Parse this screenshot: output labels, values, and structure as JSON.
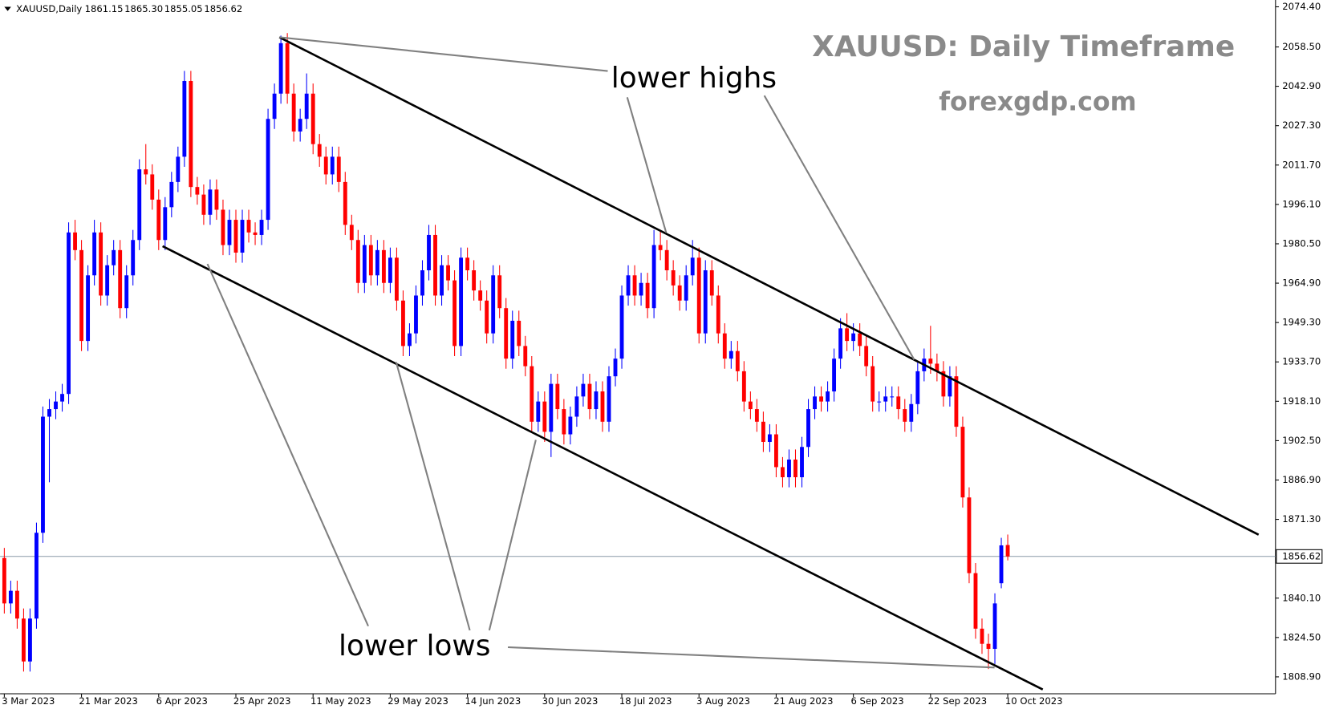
{
  "chart_data": {
    "type": "candlestick",
    "title": "XAUUSD: Daily Timeframe",
    "subtitle": "forexgdp.com",
    "symbol": "XAUUSD,Daily",
    "header_labels": [
      "1861.15",
      "1865.30",
      "1855.05",
      "1856.62"
    ],
    "annotations": [
      "lower highs",
      "lower lows"
    ],
    "up_color": "#0000ff",
    "down_color": "#ff0000",
    "grid": false,
    "last_price": 1856.62,
    "ylim": [
      1802.2,
      2077.1
    ],
    "yticks": [
      {
        "value": 1808.9,
        "label": "1808.90"
      },
      {
        "value": 1824.5,
        "label": "1824.50"
      },
      {
        "value": 1840.1,
        "label": "1840.10"
      },
      {
        "value": 1871.3,
        "label": "1871.30"
      },
      {
        "value": 1886.9,
        "label": "1886.90"
      },
      {
        "value": 1902.5,
        "label": "1902.50"
      },
      {
        "value": 1918.1,
        "label": "1918.10"
      },
      {
        "value": 1933.7,
        "label": "1933.70"
      },
      {
        "value": 1949.3,
        "label": "1949.30"
      },
      {
        "value": 1964.9,
        "label": "1964.90"
      },
      {
        "value": 1980.5,
        "label": "1980.50"
      },
      {
        "value": 1996.1,
        "label": "1996.10"
      },
      {
        "value": 2011.7,
        "label": "2011.70"
      },
      {
        "value": 2027.3,
        "label": "2027.30"
      },
      {
        "value": 2042.9,
        "label": "2042.90"
      },
      {
        "value": 2058.5,
        "label": "2058.50"
      },
      {
        "value": 2074.4,
        "label": "2074.40"
      }
    ],
    "categories": [
      "3 Mar 2023",
      null,
      null,
      null,
      null,
      null,
      null,
      null,
      null,
      null,
      null,
      null,
      "21 Mar 2023",
      null,
      null,
      null,
      null,
      null,
      null,
      null,
      null,
      null,
      null,
      null,
      "6 Apr 2023",
      null,
      null,
      null,
      null,
      null,
      null,
      null,
      null,
      null,
      null,
      null,
      "25 Apr 2023",
      null,
      null,
      null,
      null,
      null,
      null,
      null,
      null,
      null,
      null,
      null,
      "11 May 2023",
      null,
      null,
      null,
      null,
      null,
      null,
      null,
      null,
      null,
      null,
      null,
      "29 May 2023",
      null,
      null,
      null,
      null,
      null,
      null,
      null,
      null,
      null,
      null,
      null,
      "14 Jun 2023",
      null,
      null,
      null,
      null,
      null,
      null,
      null,
      null,
      null,
      null,
      null,
      "30 Jun 2023",
      null,
      null,
      null,
      null,
      null,
      null,
      null,
      null,
      null,
      null,
      null,
      "18 Jul 2023",
      null,
      null,
      null,
      null,
      null,
      null,
      null,
      null,
      null,
      null,
      null,
      "3 Aug 2023",
      null,
      null,
      null,
      null,
      null,
      null,
      null,
      null,
      null,
      null,
      null,
      "21 Aug 2023",
      null,
      null,
      null,
      null,
      null,
      null,
      null,
      null,
      null,
      null,
      null,
      "6 Sep 2023",
      null,
      null,
      null,
      null,
      null,
      null,
      null,
      null,
      null,
      null,
      null,
      "22 Sep 2023",
      null,
      null,
      null,
      null,
      null,
      null,
      null,
      null,
      null,
      null,
      null,
      "10 Oct 2023"
    ],
    "ohlc": [
      [
        1856,
        1860,
        1834,
        1838
      ],
      [
        1838,
        1847,
        1834,
        1843
      ],
      [
        1843,
        1847,
        1828,
        1832
      ],
      [
        1832,
        1836,
        1811,
        1815
      ],
      [
        1815,
        1836,
        1811,
        1832
      ],
      [
        1832,
        1870,
        1828,
        1866
      ],
      [
        1866,
        1916,
        1862,
        1912
      ],
      [
        1912,
        1919,
        1886,
        1915
      ],
      [
        1915,
        1922,
        1911,
        1918
      ],
      [
        1918,
        1925,
        1914,
        1921
      ],
      [
        1921,
        1989,
        1917,
        1985
      ],
      [
        1985,
        1990,
        1974,
        1978
      ],
      [
        1978,
        1982,
        1938,
        1942
      ],
      [
        1942,
        1972,
        1938,
        1968
      ],
      [
        1968,
        1990,
        1964,
        1985
      ],
      [
        1985,
        1989,
        1956,
        1960
      ],
      [
        1960,
        1976,
        1956,
        1972
      ],
      [
        1972,
        1982,
        1968,
        1978
      ],
      [
        1978,
        1982,
        1951,
        1955
      ],
      [
        1955,
        1972,
        1951,
        1968
      ],
      [
        1968,
        1986,
        1964,
        1982
      ],
      [
        1982,
        2014,
        1978,
        2010
      ],
      [
        2010,
        2020,
        2004,
        2008
      ],
      [
        2008,
        2012,
        1994,
        1998
      ],
      [
        1998,
        2002,
        1978,
        1982
      ],
      [
        1982,
        1999,
        1978,
        1995
      ],
      [
        1995,
        2009,
        1991,
        2005
      ],
      [
        2005,
        2019,
        2001,
        2015
      ],
      [
        2015,
        2049,
        2011,
        2045
      ],
      [
        2045,
        2049,
        1999,
        2003
      ],
      [
        2003,
        2007,
        1996,
        2000
      ],
      [
        2000,
        2004,
        1988,
        1992
      ],
      [
        1992,
        2006,
        1988,
        2002
      ],
      [
        2002,
        2006,
        1990,
        1994
      ],
      [
        1994,
        1998,
        1976,
        1980
      ],
      [
        1980,
        1994,
        1976,
        1990
      ],
      [
        1990,
        1994,
        1973,
        1977
      ],
      [
        1977,
        1994,
        1973,
        1990
      ],
      [
        1990,
        1994,
        1981,
        1985
      ],
      [
        1985,
        1989,
        1980,
        1984
      ],
      [
        1984,
        1994,
        1980,
        1990
      ],
      [
        1990,
        2034,
        1986,
        2030
      ],
      [
        2030,
        2044,
        2026,
        2040
      ],
      [
        2040,
        2063,
        2036,
        2060
      ],
      [
        2060,
        2064,
        2036,
        2040
      ],
      [
        2040,
        2044,
        2021,
        2025
      ],
      [
        2025,
        2034,
        2021,
        2030
      ],
      [
        2030,
        2048,
        2026,
        2040
      ],
      [
        2040,
        2044,
        2016,
        2020
      ],
      [
        2020,
        2024,
        2011,
        2015
      ],
      [
        2015,
        2019,
        2004,
        2008
      ],
      [
        2008,
        2019,
        2004,
        2015
      ],
      [
        2015,
        2019,
        2001,
        2005
      ],
      [
        2005,
        2009,
        1984,
        1988
      ],
      [
        1988,
        1992,
        1978,
        1982
      ],
      [
        1982,
        1986,
        1961,
        1965
      ],
      [
        1965,
        1984,
        1961,
        1980
      ],
      [
        1980,
        1984,
        1964,
        1968
      ],
      [
        1968,
        1982,
        1964,
        1978
      ],
      [
        1978,
        1982,
        1961,
        1965
      ],
      [
        1965,
        1979,
        1961,
        1975
      ],
      [
        1975,
        1979,
        1954,
        1958
      ],
      [
        1958,
        1962,
        1936,
        1940
      ],
      [
        1940,
        1949,
        1936,
        1945
      ],
      [
        1945,
        1964,
        1941,
        1960
      ],
      [
        1960,
        1974,
        1956,
        1970
      ],
      [
        1970,
        1988,
        1966,
        1984
      ],
      [
        1984,
        1988,
        1956,
        1960
      ],
      [
        1960,
        1976,
        1956,
        1972
      ],
      [
        1972,
        1976,
        1962,
        1966
      ],
      [
        1966,
        1970,
        1936,
        1940
      ],
      [
        1940,
        1979,
        1936,
        1975
      ],
      [
        1975,
        1979,
        1966,
        1970
      ],
      [
        1970,
        1974,
        1958,
        1962
      ],
      [
        1962,
        1966,
        1954,
        1958
      ],
      [
        1958,
        1962,
        1941,
        1945
      ],
      [
        1945,
        1972,
        1941,
        1968
      ],
      [
        1968,
        1972,
        1951,
        1955
      ],
      [
        1955,
        1959,
        1931,
        1935
      ],
      [
        1935,
        1954,
        1931,
        1950
      ],
      [
        1950,
        1954,
        1936,
        1940
      ],
      [
        1940,
        1944,
        1928,
        1932
      ],
      [
        1932,
        1936,
        1906,
        1910
      ],
      [
        1910,
        1922,
        1906,
        1918
      ],
      [
        1918,
        1922,
        1902,
        1906
      ],
      [
        1906,
        1929,
        1896,
        1925
      ],
      [
        1925,
        1929,
        1911,
        1915
      ],
      [
        1915,
        1919,
        1901,
        1905
      ],
      [
        1905,
        1916,
        1901,
        1912
      ],
      [
        1912,
        1924,
        1908,
        1920
      ],
      [
        1920,
        1929,
        1916,
        1925
      ],
      [
        1925,
        1929,
        1911,
        1915
      ],
      [
        1915,
        1926,
        1911,
        1922
      ],
      [
        1922,
        1926,
        1906,
        1910
      ],
      [
        1910,
        1932,
        1906,
        1928
      ],
      [
        1928,
        1939,
        1924,
        1935
      ],
      [
        1935,
        1964,
        1931,
        1960
      ],
      [
        1960,
        1972,
        1956,
        1968
      ],
      [
        1968,
        1972,
        1956,
        1960
      ],
      [
        1960,
        1969,
        1956,
        1965
      ],
      [
        1965,
        1969,
        1951,
        1955
      ],
      [
        1955,
        1986,
        1951,
        1980
      ],
      [
        1980,
        1986,
        1974,
        1978
      ],
      [
        1978,
        1982,
        1966,
        1970
      ],
      [
        1970,
        1974,
        1960,
        1964
      ],
      [
        1964,
        1968,
        1954,
        1958
      ],
      [
        1958,
        1972,
        1954,
        1968
      ],
      [
        1968,
        1982,
        1964,
        1975
      ],
      [
        1975,
        1979,
        1941,
        1945
      ],
      [
        1945,
        1974,
        1941,
        1970
      ],
      [
        1970,
        1974,
        1956,
        1960
      ],
      [
        1960,
        1964,
        1941,
        1945
      ],
      [
        1945,
        1949,
        1931,
        1935
      ],
      [
        1935,
        1942,
        1931,
        1938
      ],
      [
        1938,
        1942,
        1926,
        1930
      ],
      [
        1930,
        1934,
        1914,
        1918
      ],
      [
        1918,
        1922,
        1911,
        1915
      ],
      [
        1915,
        1919,
        1906,
        1910
      ],
      [
        1910,
        1914,
        1898,
        1902
      ],
      [
        1902,
        1909,
        1898,
        1905
      ],
      [
        1905,
        1909,
        1888,
        1892
      ],
      [
        1892,
        1896,
        1884,
        1888
      ],
      [
        1888,
        1899,
        1884,
        1895
      ],
      [
        1895,
        1899,
        1884,
        1888
      ],
      [
        1888,
        1904,
        1884,
        1900
      ],
      [
        1900,
        1919,
        1896,
        1915
      ],
      [
        1915,
        1924,
        1911,
        1920
      ],
      [
        1920,
        1924,
        1914,
        1918
      ],
      [
        1918,
        1926,
        1914,
        1922
      ],
      [
        1922,
        1939,
        1918,
        1935
      ],
      [
        1935,
        1951,
        1931,
        1947
      ],
      [
        1947,
        1953,
        1938,
        1942
      ],
      [
        1942,
        1949,
        1938,
        1945
      ],
      [
        1945,
        1949,
        1936,
        1940
      ],
      [
        1940,
        1944,
        1928,
        1932
      ],
      [
        1932,
        1936,
        1914,
        1918
      ],
      [
        1918,
        1922,
        1914,
        1918
      ],
      [
        1918,
        1924,
        1914,
        1920
      ],
      [
        1920,
        1924,
        1916,
        1920
      ],
      [
        1920,
        1924,
        1911,
        1915
      ],
      [
        1915,
        1919,
        1906,
        1910
      ],
      [
        1910,
        1921,
        1906,
        1917
      ],
      [
        1917,
        1934,
        1913,
        1930
      ],
      [
        1930,
        1939,
        1926,
        1935
      ],
      [
        1935,
        1948,
        1929,
        1933
      ],
      [
        1933,
        1937,
        1926,
        1930
      ],
      [
        1930,
        1934,
        1916,
        1920
      ],
      [
        1920,
        1932,
        1916,
        1928
      ],
      [
        1928,
        1932,
        1904,
        1908
      ],
      [
        1908,
        1912,
        1876,
        1880
      ],
      [
        1880,
        1884,
        1846,
        1850
      ],
      [
        1850,
        1854,
        1824,
        1828
      ],
      [
        1828,
        1832,
        1818,
        1822
      ],
      [
        1822,
        1826,
        1812,
        1820
      ],
      [
        1820,
        1842,
        1814,
        1838
      ],
      [
        1846,
        1864,
        1844,
        1861
      ],
      [
        1861.15,
        1865.3,
        1855.05,
        1856.62
      ]
    ]
  }
}
